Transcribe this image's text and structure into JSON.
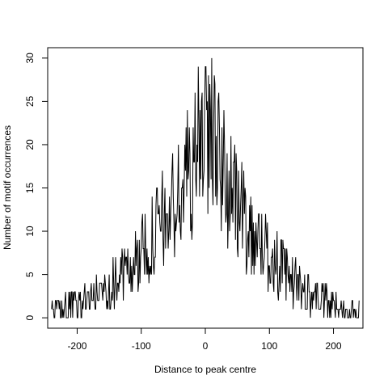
{
  "chart_data": {
    "type": "line",
    "title": "",
    "xlabel": "Distance to peak centre",
    "ylabel": "Number of motif occurrences",
    "xlim": [
      -246,
      246
    ],
    "ylim": [
      -1.2,
      31.2
    ],
    "xticks": [
      -200,
      -100,
      0,
      100,
      200
    ],
    "yticks": [
      0,
      5,
      10,
      15,
      20,
      25,
      30
    ],
    "xtick_labels": [
      "-200",
      "-100",
      "0",
      "100",
      "200"
    ],
    "ytick_labels": [
      "0",
      "5",
      "10",
      "15",
      "20",
      "25",
      "30"
    ],
    "grid": false,
    "legend": "none",
    "series_shape": {
      "x_start": -240,
      "x_end": 240,
      "step": 1,
      "envelope": [
        [
          -240,
          0.6
        ],
        [
          -200,
          1.4
        ],
        [
          -160,
          3.2
        ],
        [
          -120,
          5.6
        ],
        [
          -80,
          9.5
        ],
        [
          -40,
          14.0
        ],
        [
          -10,
          20.0
        ],
        [
          0,
          24.5
        ],
        [
          10,
          21.0
        ],
        [
          40,
          14.5
        ],
        [
          80,
          9.0
        ],
        [
          120,
          5.5
        ],
        [
          160,
          2.8
        ],
        [
          200,
          1.3
        ],
        [
          240,
          0.7
        ]
      ],
      "peaks": [
        [
          -30,
          22
        ],
        [
          -10,
          23
        ],
        [
          -5,
          26
        ],
        [
          0,
          29
        ],
        [
          5,
          28
        ],
        [
          10,
          30
        ],
        [
          15,
          27
        ],
        [
          20,
          25
        ]
      ]
    }
  }
}
